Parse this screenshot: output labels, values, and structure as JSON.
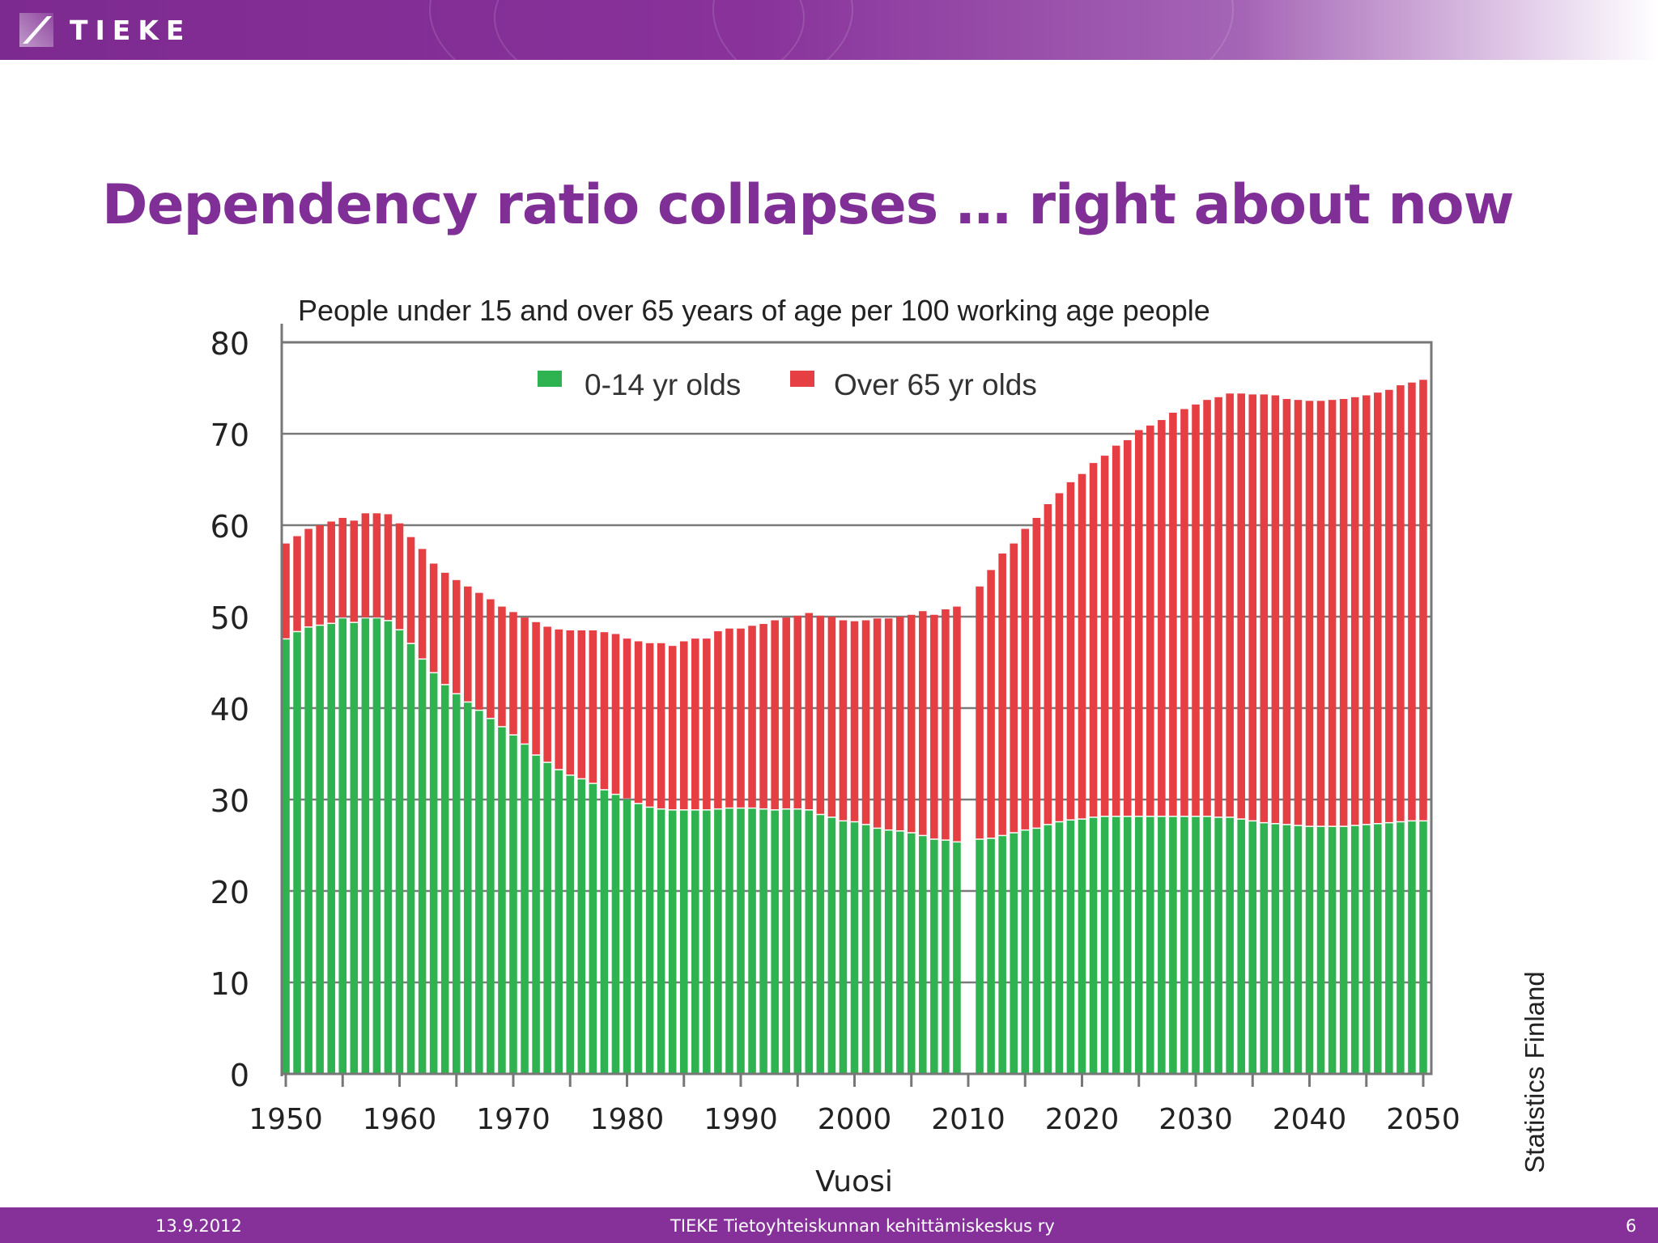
{
  "header": {
    "logo_text": "TIEKE",
    "logo_icon": "tieke-logo-icon"
  },
  "slide_title": "Dependency ratio collapses … right about now",
  "footer": {
    "date": "13.9.2012",
    "organization": "TIEKE  Tietoyhteiskunnan kehittämiskeskus ry",
    "page_number": "6"
  },
  "source_note": "Statistics Finland",
  "colors": {
    "accent": "#7f2f95",
    "young": "#2fb350",
    "old": "#e53e43"
  },
  "chart_data": {
    "type": "bar",
    "stacked": true,
    "title": "People under 15 and over 65 years of age per 100 working age people",
    "xlabel": "Vuosi",
    "ylabel": "",
    "xlim": [
      1950,
      2050
    ],
    "ylim": [
      0,
      80
    ],
    "yticks": [
      0,
      10,
      20,
      30,
      40,
      50,
      60,
      70,
      80
    ],
    "xticks": [
      1950,
      1960,
      1970,
      1980,
      1990,
      2000,
      2010,
      2020,
      2030,
      2040,
      2050
    ],
    "grid": true,
    "legend": "top-center",
    "missing_years": [
      2010
    ],
    "x": [
      1950,
      1951,
      1952,
      1953,
      1954,
      1955,
      1956,
      1957,
      1958,
      1959,
      1960,
      1961,
      1962,
      1963,
      1964,
      1965,
      1966,
      1967,
      1968,
      1969,
      1970,
      1971,
      1972,
      1973,
      1974,
      1975,
      1976,
      1977,
      1978,
      1979,
      1980,
      1981,
      1982,
      1983,
      1984,
      1985,
      1986,
      1987,
      1988,
      1989,
      1990,
      1991,
      1992,
      1993,
      1994,
      1995,
      1996,
      1997,
      1998,
      1999,
      2000,
      2001,
      2002,
      2003,
      2004,
      2005,
      2006,
      2007,
      2008,
      2009,
      2011,
      2012,
      2013,
      2014,
      2015,
      2016,
      2017,
      2018,
      2019,
      2020,
      2021,
      2022,
      2023,
      2024,
      2025,
      2026,
      2027,
      2028,
      2029,
      2030,
      2031,
      2032,
      2033,
      2034,
      2035,
      2036,
      2037,
      2038,
      2039,
      2040,
      2041,
      2042,
      2043,
      2044,
      2045,
      2046,
      2047,
      2048,
      2049,
      2050
    ],
    "series": [
      {
        "name": "0-14 yr olds",
        "color": "#2fb350",
        "values": [
          47.5,
          48.3,
          48.8,
          49.0,
          49.2,
          49.8,
          49.3,
          49.8,
          49.8,
          49.5,
          48.5,
          47.0,
          45.3,
          43.8,
          42.5,
          41.5,
          40.6,
          39.7,
          38.8,
          37.9,
          37.0,
          36.0,
          34.8,
          34.0,
          33.2,
          32.6,
          32.2,
          31.7,
          31.0,
          30.5,
          30.0,
          29.5,
          29.1,
          28.9,
          28.8,
          28.8,
          28.8,
          28.8,
          28.9,
          29.0,
          29.0,
          29.0,
          28.9,
          28.8,
          28.9,
          28.9,
          28.8,
          28.3,
          28.0,
          27.6,
          27.5,
          27.2,
          26.8,
          26.6,
          26.5,
          26.3,
          26.0,
          25.6,
          25.5,
          25.3,
          25.6,
          25.7,
          26.0,
          26.3,
          26.6,
          26.8,
          27.2,
          27.5,
          27.7,
          27.8,
          28.0,
          28.1,
          28.1,
          28.1,
          28.1,
          28.1,
          28.1,
          28.1,
          28.1,
          28.1,
          28.1,
          28.0,
          28.0,
          27.8,
          27.6,
          27.4,
          27.3,
          27.2,
          27.1,
          27.0,
          27.0,
          27.0,
          27.0,
          27.1,
          27.2,
          27.3,
          27.4,
          27.5,
          27.6,
          27.6
        ]
      },
      {
        "name": "Over 65 yr olds",
        "color": "#e53e43",
        "values": [
          10.5,
          10.5,
          10.8,
          11.0,
          11.2,
          11.0,
          11.2,
          11.5,
          11.5,
          11.7,
          11.7,
          11.7,
          12.1,
          12.0,
          12.3,
          12.5,
          12.7,
          12.9,
          13.1,
          13.2,
          13.5,
          13.9,
          14.6,
          14.9,
          15.4,
          15.9,
          16.3,
          16.8,
          17.3,
          17.6,
          17.6,
          17.8,
          18.0,
          18.2,
          18.0,
          18.5,
          18.8,
          18.8,
          19.5,
          19.7,
          19.7,
          20.0,
          20.3,
          20.8,
          21.0,
          21.2,
          21.6,
          21.8,
          22.0,
          22.0,
          22.0,
          22.4,
          23.0,
          23.2,
          23.5,
          23.9,
          24.6,
          24.6,
          25.3,
          25.8,
          27.7,
          29.4,
          30.9,
          31.7,
          33.0,
          34.0,
          35.1,
          36.0,
          37.0,
          37.8,
          38.8,
          39.5,
          40.6,
          41.2,
          42.3,
          42.8,
          43.4,
          44.2,
          44.6,
          45.1,
          45.6,
          46.0,
          46.4,
          46.6,
          46.7,
          46.9,
          46.9,
          46.6,
          46.6,
          46.6,
          46.6,
          46.7,
          46.8,
          46.9,
          47.0,
          47.2,
          47.4,
          47.8,
          48.0,
          48.3
        ]
      }
    ]
  }
}
